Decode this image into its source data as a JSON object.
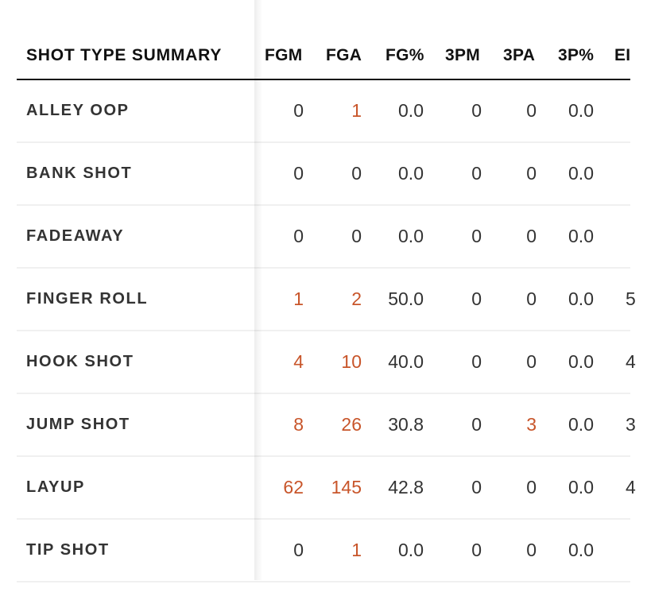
{
  "table": {
    "header": {
      "title": "SHOT TYPE SUMMARY",
      "columns": [
        "FGM",
        "FGA",
        "FG%",
        "3PM",
        "3PA",
        "3P%",
        "EI"
      ]
    },
    "rows": [
      {
        "type": "ALLEY OOP",
        "fgm": "0",
        "fga": "1",
        "fgp": "0.0",
        "tpm": "0",
        "tpa": "0",
        "tpp": "0.0",
        "ef": ""
      },
      {
        "type": "BANK SHOT",
        "fgm": "0",
        "fga": "0",
        "fgp": "0.0",
        "tpm": "0",
        "tpa": "0",
        "tpp": "0.0",
        "ef": ""
      },
      {
        "type": "FADEAWAY",
        "fgm": "0",
        "fga": "0",
        "fgp": "0.0",
        "tpm": "0",
        "tpa": "0",
        "tpp": "0.0",
        "ef": ""
      },
      {
        "type": "FINGER ROLL",
        "fgm": "1",
        "fga": "2",
        "fgp": "50.0",
        "tpm": "0",
        "tpa": "0",
        "tpp": "0.0",
        "ef": "5"
      },
      {
        "type": "HOOK SHOT",
        "fgm": "4",
        "fga": "10",
        "fgp": "40.0",
        "tpm": "0",
        "tpa": "0",
        "tpp": "0.0",
        "ef": "4"
      },
      {
        "type": "JUMP SHOT",
        "fgm": "8",
        "fga": "26",
        "fgp": "30.8",
        "tpm": "0",
        "tpa": "3",
        "tpp": "0.0",
        "ef": "3"
      },
      {
        "type": "LAYUP",
        "fgm": "62",
        "fga": "145",
        "fgp": "42.8",
        "tpm": "0",
        "tpa": "0",
        "tpp": "0.0",
        "ef": "4"
      },
      {
        "type": "TIP SHOT",
        "fgm": "0",
        "fga": "1",
        "fgp": "0.0",
        "tpm": "0",
        "tpa": "0",
        "tpp": "0.0",
        "ef": ""
      }
    ]
  },
  "colors": {
    "link": "#c8552a",
    "text": "#333333",
    "header_text": "#111111",
    "header_rule": "#111111",
    "row_rule": "#f0f0f0"
  }
}
